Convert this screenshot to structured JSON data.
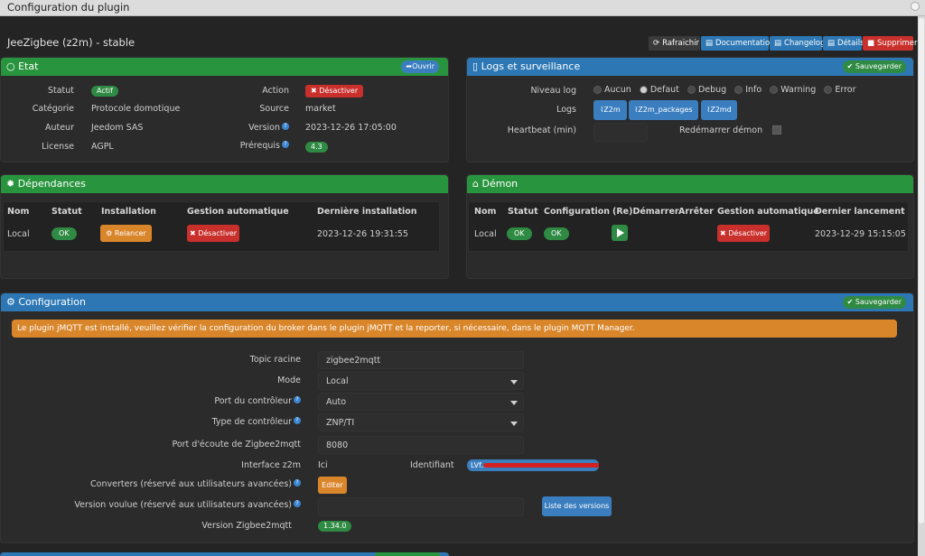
{
  "window": {
    "title": "Configuration du plugin"
  },
  "plugin": {
    "title": "JeeZigbee (z2m) - stable"
  },
  "toolbar": {
    "refresh": "Rafraichir",
    "docs": "Documentation",
    "changelog": "Changelog",
    "details": "Détails",
    "delete": "Supprimer"
  },
  "etat": {
    "title": "Etat",
    "open": "Ouvrir",
    "statut_label": "Statut",
    "statut_value": "Actif",
    "categorie_label": "Catégorie",
    "categorie_value": "Protocole domotique",
    "auteur_label": "Auteur",
    "auteur_value": "Jeedom SAS",
    "license_label": "License",
    "license_value": "AGPL",
    "action_label": "Action",
    "action_value": "Désactiver",
    "source_label": "Source",
    "source_value": "market",
    "version_label": "Version",
    "version_value": "2023-12-26 17:05:00",
    "prereq_label": "Prérequis",
    "prereq_value": "4.3"
  },
  "logs": {
    "title": "Logs et surveillance",
    "save": "Sauvegarder",
    "niveau_label": "Niveau log",
    "levels": [
      "Aucun",
      "Defaut",
      "Debug",
      "Info",
      "Warning",
      "Error"
    ],
    "selected_level": "Defaut",
    "logs_label": "Logs",
    "log_buttons": [
      "Z2m",
      "Z2m_packages",
      "Z2md"
    ],
    "heartbeat_label": "Heartbeat (min)",
    "heartbeat_value": "",
    "restart_label": "Redémarrer démon"
  },
  "deps": {
    "title": "Dépendances",
    "headers": [
      "Nom",
      "Statut",
      "Installation",
      "Gestion automatique",
      "Dernière installation"
    ],
    "row": {
      "nom": "Local",
      "statut": "OK",
      "install": "Relancer",
      "gestion": "Désactiver",
      "last": "2023-12-26 19:31:55"
    }
  },
  "demon": {
    "title": "Démon",
    "headers": [
      "Nom",
      "Statut",
      "Configuration",
      "(Re)Démarrer",
      "Arrêter",
      "Gestion automatique",
      "Dernier lancement"
    ],
    "row": {
      "nom": "Local",
      "statut": "OK",
      "config": "OK",
      "gestion": "Désactiver",
      "last": "2023-12-29 15:15:05"
    }
  },
  "config": {
    "title": "Configuration",
    "save": "Sauvegarder",
    "warning": "Le plugin jMQTT est installé, veuillez vérifier la configuration du broker dans le plugin jMQTT et la reporter, si nécessaire, dans le plugin MQTT Manager.",
    "topic_label": "Topic racine",
    "topic_value": "zigbee2mqtt",
    "mode_label": "Mode",
    "mode_value": "Local",
    "port_label": "Port du contrôleur",
    "port_value": "Auto",
    "type_label": "Type de contrôleur",
    "type_value": "ZNP/TI",
    "listen_label": "Port d'écoute de Zigbee2mqtt",
    "listen_value": "8080",
    "iface_label": "Interface z2m",
    "iface_ici": "Ici",
    "iface_id_label": "Identifiant",
    "iface_id_value": "LVf...",
    "conv_label": "Converters (réservé aux utilisateurs avancées)",
    "conv_btn": "Editer",
    "ver_label": "Version voulue (réservé aux utilisateurs avancées)",
    "ver_value": "",
    "ver_btn": "Liste des versions",
    "z2m_label": "Version Zigbee2mqtt",
    "z2m_value": "1.34.0"
  }
}
